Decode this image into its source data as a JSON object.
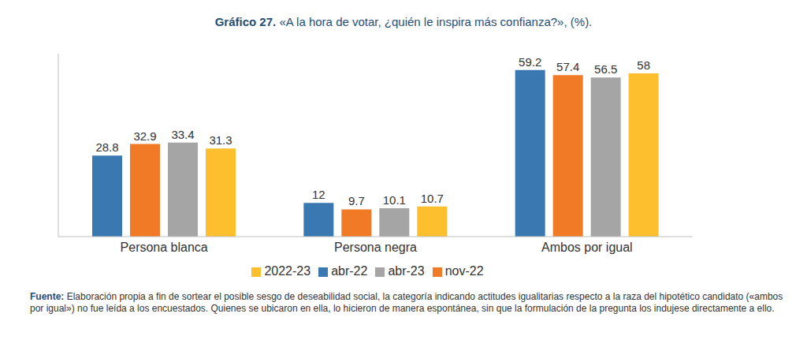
{
  "chart_data": {
    "type": "bar",
    "title_label": "Gráfico 27.",
    "title": "«A la hora de votar, ¿quién le inspira más confianza?», (%).",
    "categories": [
      "Persona blanca",
      "Persona negra",
      "Ambos por igual"
    ],
    "series": [
      {
        "name": "abr-22",
        "color": "#3a78b1",
        "values": [
          28.8,
          12,
          59.2
        ]
      },
      {
        "name": "nov-22",
        "color": "#f07a25",
        "values": [
          32.9,
          9.7,
          57.4
        ]
      },
      {
        "name": "abr-23",
        "color": "#a5a5a5",
        "values": [
          33.4,
          10.1,
          56.5
        ]
      },
      {
        "name": "2022-23",
        "color": "#fdbf2d",
        "values": [
          31.3,
          10.7,
          58
        ]
      }
    ],
    "ylim": [
      0,
      65
    ],
    "grid": false,
    "legend": "bottom",
    "data_labels": true,
    "tick_labels": "x",
    "source_label": "Fuente:",
    "source": "Elaboración propia a fin de sortear el posible sesgo de deseabilidad social, la categoría indicando actitudes igualitarias respecto a la raza del hipotético candidato («ambos por igual») no fue leída a los encuestados. Quienes se ubicaron en ella, lo hicieron de manera espontánea, sin que la formulación de la pregunta los indujese directamente a ello."
  }
}
